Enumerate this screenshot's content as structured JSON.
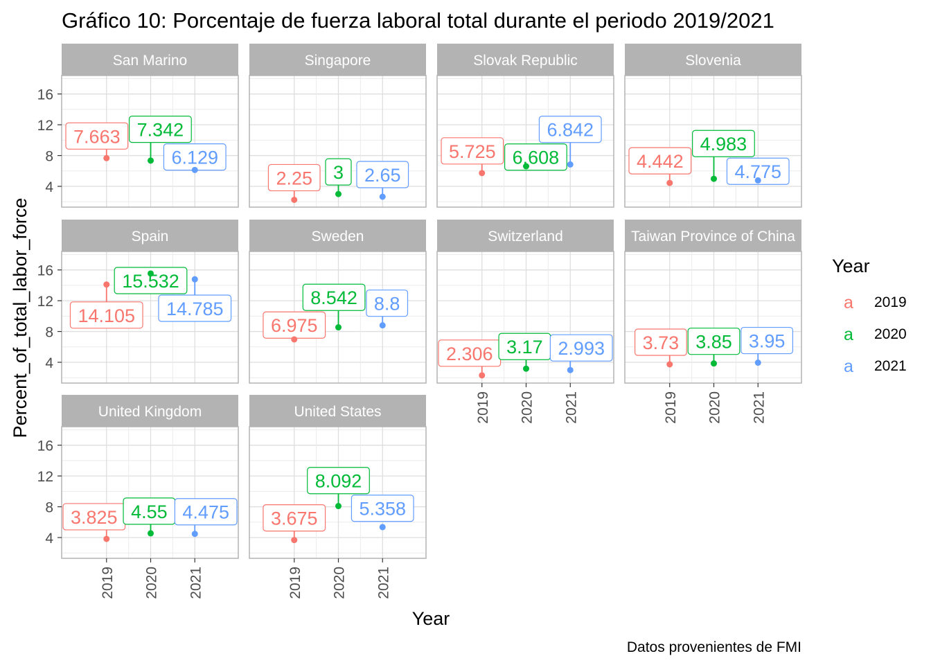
{
  "chart_data": {
    "type": "scatter",
    "title": "Gráfico 10: Porcentaje de fuerza laboral total durante el periodo 2019/2021",
    "xlabel": "Year",
    "ylabel": "Percent_of_total_labor_force",
    "caption": "Datos provenientes de FMI",
    "x_ticks": [
      "2019",
      "2020",
      "2021"
    ],
    "y_ticks": [
      4,
      8,
      12,
      16
    ],
    "ylim": [
      1.3,
      18.4
    ],
    "grid": true,
    "legend": {
      "title": "Year",
      "position": "right",
      "glyph": "a",
      "entries": [
        {
          "label": "2019",
          "color": "#F8766D"
        },
        {
          "label": "2020",
          "color": "#00BA38"
        },
        {
          "label": "2021",
          "color": "#619CFF"
        }
      ]
    },
    "facets": [
      {
        "name": "San Marino",
        "values": [
          7.663,
          7.342,
          6.129
        ]
      },
      {
        "name": "Singapore",
        "values": [
          2.25,
          3,
          2.65
        ]
      },
      {
        "name": "Slovak Republic",
        "values": [
          5.725,
          6.608,
          6.842
        ]
      },
      {
        "name": "Slovenia",
        "values": [
          4.442,
          4.983,
          4.775
        ]
      },
      {
        "name": "Spain",
        "values": [
          14.105,
          15.532,
          14.785
        ]
      },
      {
        "name": "Sweden",
        "values": [
          6.975,
          8.542,
          8.8
        ]
      },
      {
        "name": "Switzerland",
        "values": [
          2.306,
          3.17,
          2.993
        ]
      },
      {
        "name": "Taiwan Province of China",
        "values": [
          3.73,
          3.85,
          3.95
        ]
      },
      {
        "name": "United Kingdom",
        "values": [
          3.825,
          4.55,
          4.475
        ]
      },
      {
        "name": "United States",
        "values": [
          3.675,
          8.092,
          5.358
        ]
      }
    ]
  }
}
